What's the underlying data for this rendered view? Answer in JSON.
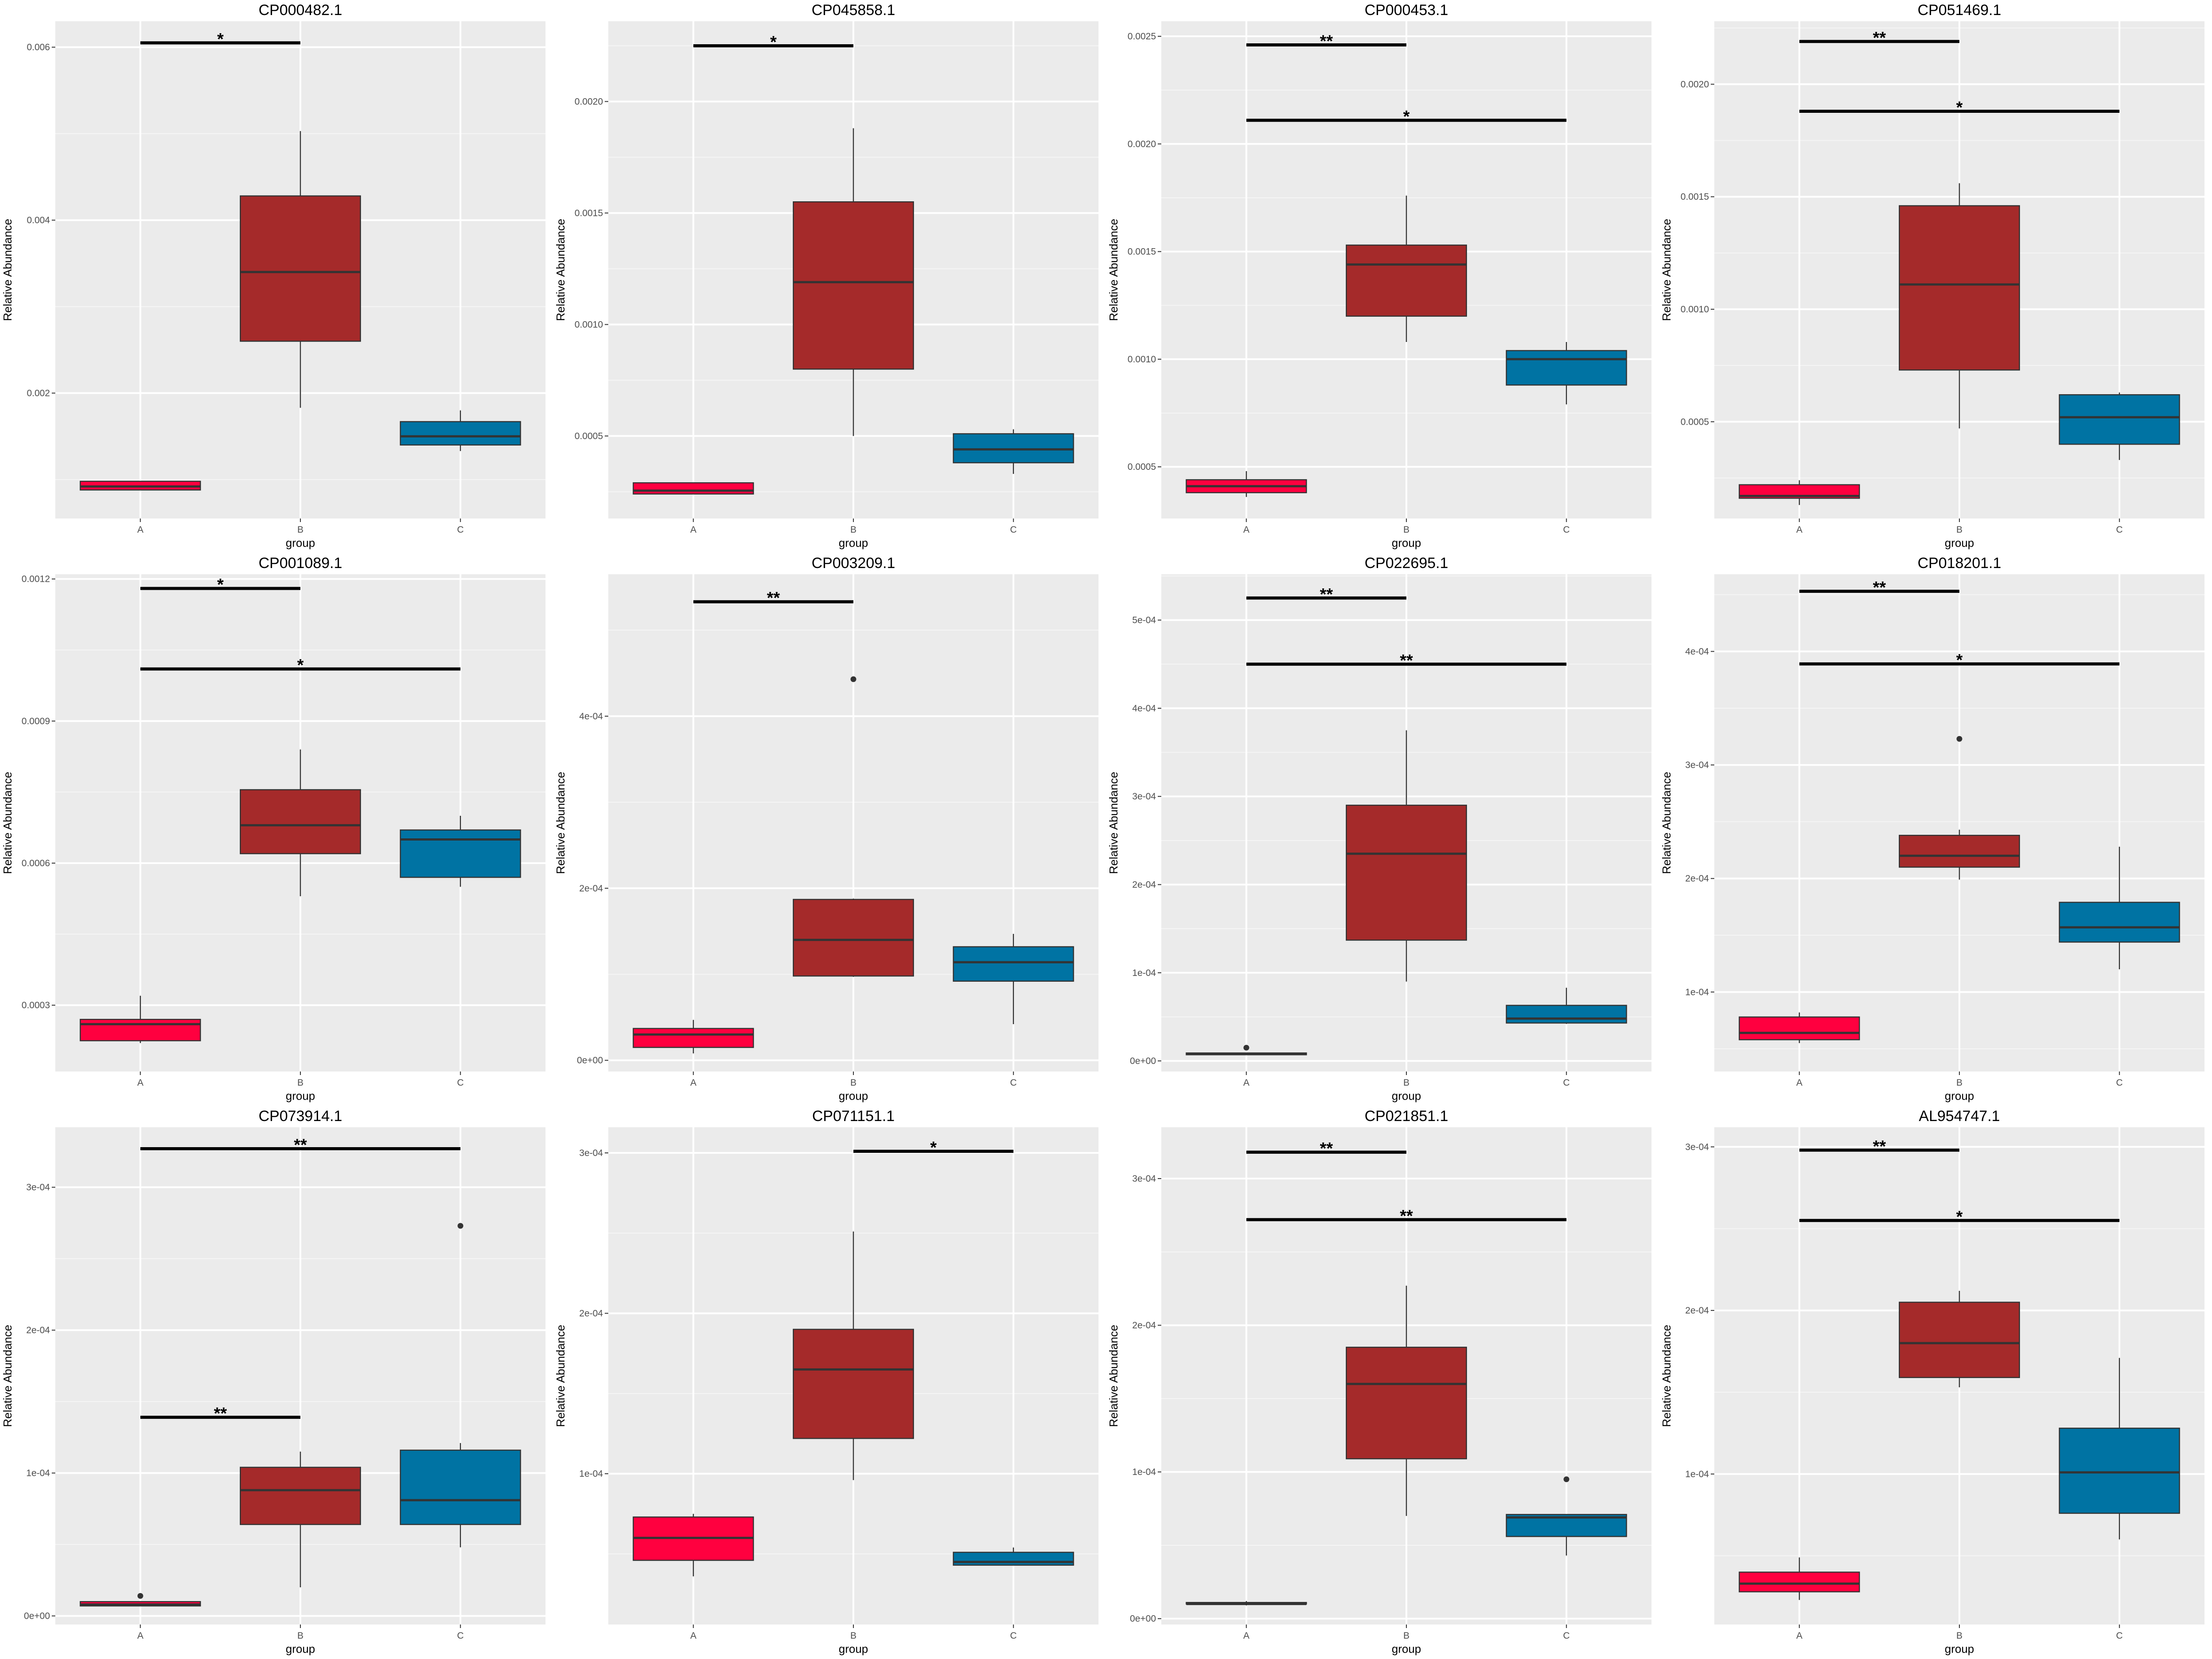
{
  "colors": {
    "A": "#ff003f",
    "B": "#a52a2a",
    "C": "#0073a3",
    "panel_bg": "#ebebeb"
  },
  "chart_data": [
    {
      "type": "box",
      "title": "CP000482.1",
      "xlabel": "group",
      "ylabel": "Relative Abundance",
      "categories": [
        "A",
        "B",
        "C"
      ],
      "ylim": [
        0.00055,
        0.0063
      ],
      "yticks": [
        0.002,
        0.004,
        0.006
      ],
      "yticklabels": [
        "0.002",
        "0.004",
        "0.006"
      ],
      "boxes": [
        {
          "group": "A",
          "min": 0.00088,
          "q1": 0.00088,
          "median": 0.00092,
          "q3": 0.00098,
          "max": 0.00098,
          "outliers": []
        },
        {
          "group": "B",
          "min": 0.00183,
          "q1": 0.0026,
          "median": 0.0034,
          "q3": 0.00428,
          "max": 0.00503,
          "outliers": []
        },
        {
          "group": "C",
          "min": 0.00133,
          "q1": 0.0014,
          "median": 0.0015,
          "q3": 0.00167,
          "max": 0.0018,
          "outliers": []
        }
      ],
      "brackets": [
        {
          "from": "A",
          "to": "B",
          "y": 0.00605,
          "label": "*"
        }
      ]
    },
    {
      "type": "box",
      "title": "CP045858.1",
      "xlabel": "group",
      "ylabel": "Relative Abundance",
      "categories": [
        "A",
        "B",
        "C"
      ],
      "ylim": [
        0.00013,
        0.00236
      ],
      "yticks": [
        0.0005,
        0.001,
        0.0015,
        0.002
      ],
      "yticklabels": [
        "0.0005",
        "0.0010",
        "0.0015",
        "0.0020"
      ],
      "boxes": [
        {
          "group": "A",
          "min": 0.00024,
          "q1": 0.00024,
          "median": 0.000255,
          "q3": 0.00029,
          "max": 0.00029,
          "outliers": []
        },
        {
          "group": "B",
          "min": 0.0005,
          "q1": 0.0008,
          "median": 0.00119,
          "q3": 0.00155,
          "max": 0.00188,
          "outliers": []
        },
        {
          "group": "C",
          "min": 0.00033,
          "q1": 0.00038,
          "median": 0.00044,
          "q3": 0.00051,
          "max": 0.00053,
          "outliers": []
        }
      ],
      "brackets": [
        {
          "from": "A",
          "to": "B",
          "y": 0.00225,
          "label": "*"
        }
      ]
    },
    {
      "type": "box",
      "title": "CP000453.1",
      "xlabel": "group",
      "ylabel": "Relative Abundance",
      "categories": [
        "A",
        "B",
        "C"
      ],
      "ylim": [
        0.00026,
        0.00257
      ],
      "yticks": [
        0.0005,
        0.001,
        0.0015,
        0.002,
        0.0025
      ],
      "yticklabels": [
        "0.0005",
        "0.0010",
        "0.0015",
        "0.0020",
        "0.0025"
      ],
      "boxes": [
        {
          "group": "A",
          "min": 0.00036,
          "q1": 0.00038,
          "median": 0.00041,
          "q3": 0.00044,
          "max": 0.00048,
          "outliers": []
        },
        {
          "group": "B",
          "min": 0.00108,
          "q1": 0.0012,
          "median": 0.00144,
          "q3": 0.00153,
          "max": 0.00176,
          "outliers": []
        },
        {
          "group": "C",
          "min": 0.00079,
          "q1": 0.00088,
          "median": 0.001,
          "q3": 0.00104,
          "max": 0.00108,
          "outliers": []
        }
      ],
      "brackets": [
        {
          "from": "A",
          "to": "B",
          "y": 0.00246,
          "label": "**"
        },
        {
          "from": "A",
          "to": "C",
          "y": 0.00211,
          "label": "*"
        }
      ]
    },
    {
      "type": "box",
      "title": "CP051469.1",
      "xlabel": "group",
      "ylabel": "Relative Abundance",
      "categories": [
        "A",
        "B",
        "C"
      ],
      "ylim": [
        7e-05,
        0.00228
      ],
      "yticks": [
        0.0005,
        0.001,
        0.0015,
        0.002
      ],
      "yticklabels": [
        "0.0005",
        "0.0010",
        "0.0015",
        "0.0020"
      ],
      "boxes": [
        {
          "group": "A",
          "min": 0.00013,
          "q1": 0.00016,
          "median": 0.00017,
          "q3": 0.00022,
          "max": 0.00024,
          "outliers": []
        },
        {
          "group": "B",
          "min": 0.00047,
          "q1": 0.00073,
          "median": 0.00111,
          "q3": 0.00146,
          "max": 0.00156,
          "outliers": []
        },
        {
          "group": "C",
          "min": 0.00033,
          "q1": 0.0004,
          "median": 0.00052,
          "q3": 0.00062,
          "max": 0.00063,
          "outliers": []
        }
      ],
      "brackets": [
        {
          "from": "A",
          "to": "B",
          "y": 0.00219,
          "label": "**"
        },
        {
          "from": "A",
          "to": "C",
          "y": 0.00188,
          "label": "*"
        }
      ]
    },
    {
      "type": "box",
      "title": "CP001089.1",
      "xlabel": "group",
      "ylabel": "Relative Abundance",
      "categories": [
        "A",
        "B",
        "C"
      ],
      "ylim": [
        0.00016,
        0.00121
      ],
      "yticks": [
        0.0003,
        0.0006,
        0.0009,
        0.0012
      ],
      "yticklabels": [
        "0.0003",
        "0.0006",
        "0.0009",
        "0.0012"
      ],
      "boxes": [
        {
          "group": "A",
          "min": 0.00022,
          "q1": 0.000225,
          "median": 0.00026,
          "q3": 0.00027,
          "max": 0.00032,
          "outliers": []
        },
        {
          "group": "B",
          "min": 0.00053,
          "q1": 0.00062,
          "median": 0.00068,
          "q3": 0.000755,
          "max": 0.00084,
          "outliers": []
        },
        {
          "group": "C",
          "min": 0.00055,
          "q1": 0.00057,
          "median": 0.00065,
          "q3": 0.00067,
          "max": 0.0007,
          "outliers": []
        }
      ],
      "brackets": [
        {
          "from": "A",
          "to": "B",
          "y": 0.00118,
          "label": "*"
        },
        {
          "from": "A",
          "to": "C",
          "y": 0.00101,
          "label": "*"
        }
      ]
    },
    {
      "type": "box",
      "title": "CP003209.1",
      "xlabel": "group",
      "ylabel": "Relative Abundance",
      "categories": [
        "A",
        "B",
        "C"
      ],
      "ylim": [
        -1.3e-05,
        0.000565
      ],
      "yticks": [
        0,
        0.0002,
        0.0004
      ],
      "yticklabels": [
        "0e+00",
        "2e-04",
        "4e-04"
      ],
      "boxes": [
        {
          "group": "A",
          "min": 8e-06,
          "q1": 1.5e-05,
          "median": 3e-05,
          "q3": 3.7e-05,
          "max": 4.7e-05,
          "outliers": []
        },
        {
          "group": "B",
          "min": 9.7e-05,
          "q1": 9.8e-05,
          "median": 0.00014,
          "q3": 0.000187,
          "max": 0.000188,
          "outliers": [
            0.000443
          ]
        },
        {
          "group": "C",
          "min": 4.2e-05,
          "q1": 9.2e-05,
          "median": 0.000114,
          "q3": 0.000132,
          "max": 0.000147,
          "outliers": []
        }
      ],
      "brackets": [
        {
          "from": "A",
          "to": "B",
          "y": 0.000533,
          "label": "**"
        }
      ]
    },
    {
      "type": "box",
      "title": "CP022695.1",
      "xlabel": "group",
      "ylabel": "Relative Abundance",
      "categories": [
        "A",
        "B",
        "C"
      ],
      "ylim": [
        -1.2e-05,
        0.000552
      ],
      "yticks": [
        0,
        0.0001,
        0.0002,
        0.0003,
        0.0004,
        0.0005
      ],
      "yticklabels": [
        "0e+00",
        "1e-04",
        "2e-04",
        "3e-04",
        "4e-04",
        "5e-04"
      ],
      "boxes": [
        {
          "group": "A",
          "min": 7e-06,
          "q1": 7e-06,
          "median": 8e-06,
          "q3": 9e-06,
          "max": 9e-06,
          "outliers": [
            1.5e-05
          ]
        },
        {
          "group": "B",
          "min": 9e-05,
          "q1": 0.000137,
          "median": 0.000235,
          "q3": 0.00029,
          "max": 0.000375,
          "outliers": []
        },
        {
          "group": "C",
          "min": 4.2e-05,
          "q1": 4.3e-05,
          "median": 4.8e-05,
          "q3": 6.3e-05,
          "max": 8.3e-05,
          "outliers": []
        }
      ],
      "brackets": [
        {
          "from": "A",
          "to": "B",
          "y": 0.000525,
          "label": "**"
        },
        {
          "from": "A",
          "to": "C",
          "y": 0.00045,
          "label": "**"
        }
      ]
    },
    {
      "type": "box",
      "title": "CP018201.1",
      "xlabel": "group",
      "ylabel": "Relative Abundance",
      "categories": [
        "A",
        "B",
        "C"
      ],
      "ylim": [
        3e-05,
        0.000468
      ],
      "yticks": [
        0.0001,
        0.0002,
        0.0003,
        0.0004
      ],
      "yticklabels": [
        "1e-04",
        "2e-04",
        "3e-04",
        "4e-04"
      ],
      "boxes": [
        {
          "group": "A",
          "min": 5.5e-05,
          "q1": 5.8e-05,
          "median": 6.4e-05,
          "q3": 7.8e-05,
          "max": 8.2e-05,
          "outliers": []
        },
        {
          "group": "B",
          "min": 0.000199,
          "q1": 0.00021,
          "median": 0.00022,
          "q3": 0.000238,
          "max": 0.000243,
          "outliers": [
            0.000323
          ]
        },
        {
          "group": "C",
          "min": 0.00012,
          "q1": 0.000144,
          "median": 0.000157,
          "q3": 0.000179,
          "max": 0.000228,
          "outliers": []
        }
      ],
      "brackets": [
        {
          "from": "A",
          "to": "B",
          "y": 0.000453,
          "label": "**"
        },
        {
          "from": "A",
          "to": "C",
          "y": 0.000389,
          "label": "*"
        }
      ]
    },
    {
      "type": "box",
      "title": "CP073914.1",
      "xlabel": "group",
      "ylabel": "Relative Abundance",
      "categories": [
        "A",
        "B",
        "C"
      ],
      "ylim": [
        -6e-06,
        0.000342
      ],
      "yticks": [
        0,
        0.0001,
        0.0002,
        0.0003
      ],
      "yticklabels": [
        "0e+00",
        "1e-04",
        "2e-04",
        "3e-04"
      ],
      "boxes": [
        {
          "group": "A",
          "min": 7e-06,
          "q1": 7e-06,
          "median": 8e-06,
          "q3": 1e-05,
          "max": 1e-05,
          "outliers": [
            1.4e-05
          ]
        },
        {
          "group": "B",
          "min": 2e-05,
          "q1": 6.4e-05,
          "median": 8.8e-05,
          "q3": 0.000104,
          "max": 0.000115,
          "outliers": []
        },
        {
          "group": "C",
          "min": 4.8e-05,
          "q1": 6.4e-05,
          "median": 8.1e-05,
          "q3": 0.000116,
          "max": 0.000121,
          "outliers": [
            0.000273
          ]
        }
      ],
      "brackets": [
        {
          "from": "A",
          "to": "C",
          "y": 0.000327,
          "label": "**"
        },
        {
          "from": "A",
          "to": "B",
          "y": 0.000139,
          "label": "**"
        }
      ]
    },
    {
      "type": "box",
      "title": "CP071151.1",
      "xlabel": "group",
      "ylabel": "Relative Abundance",
      "categories": [
        "A",
        "B",
        "C"
      ],
      "ylim": [
        6e-06,
        0.000316
      ],
      "yticks": [
        0.0001,
        0.0002,
        0.0003
      ],
      "yticklabels": [
        "1e-04",
        "2e-04",
        "3e-04"
      ],
      "boxes": [
        {
          "group": "A",
          "min": 3.6e-05,
          "q1": 4.6e-05,
          "median": 6e-05,
          "q3": 7.3e-05,
          "max": 7.5e-05,
          "outliers": []
        },
        {
          "group": "B",
          "min": 9.6e-05,
          "q1": 0.000122,
          "median": 0.000165,
          "q3": 0.00019,
          "max": 0.000251,
          "outliers": []
        },
        {
          "group": "C",
          "min": 4.3e-05,
          "q1": 4.3e-05,
          "median": 4.5e-05,
          "q3": 5.1e-05,
          "max": 5.4e-05,
          "outliers": []
        }
      ],
      "brackets": [
        {
          "from": "B",
          "to": "C",
          "y": 0.000301,
          "label": "*"
        }
      ]
    },
    {
      "type": "box",
      "title": "CP021851.1",
      "xlabel": "group",
      "ylabel": "Relative Abundance",
      "categories": [
        "A",
        "B",
        "C"
      ],
      "ylim": [
        -4e-06,
        0.000335
      ],
      "yticks": [
        0,
        0.0001,
        0.0002,
        0.0003
      ],
      "yticklabels": [
        "0e+00",
        "1e-04",
        "2e-04",
        "3e-04"
      ],
      "boxes": [
        {
          "group": "A",
          "min": 9e-06,
          "q1": 1e-05,
          "median": 1e-05,
          "q3": 1.1e-05,
          "max": 1.2e-05,
          "outliers": []
        },
        {
          "group": "B",
          "min": 7e-05,
          "q1": 0.000109,
          "median": 0.00016,
          "q3": 0.000185,
          "max": 0.000227,
          "outliers": []
        },
        {
          "group": "C",
          "min": 4.3e-05,
          "q1": 5.6e-05,
          "median": 6.9e-05,
          "q3": 7.1e-05,
          "max": 7.1e-05,
          "outliers": [
            9.5e-05
          ]
        }
      ],
      "brackets": [
        {
          "from": "A",
          "to": "B",
          "y": 0.000318,
          "label": "**"
        },
        {
          "from": "A",
          "to": "C",
          "y": 0.000272,
          "label": "**"
        }
      ]
    },
    {
      "type": "box",
      "title": "AL954747.1",
      "xlabel": "group",
      "ylabel": "Relative Abundance",
      "categories": [
        "A",
        "B",
        "C"
      ],
      "ylim": [
        8e-06,
        0.000312
      ],
      "yticks": [
        0.0001,
        0.0002,
        0.0003
      ],
      "yticklabels": [
        "1e-04",
        "2e-04",
        "3e-04"
      ],
      "boxes": [
        {
          "group": "A",
          "min": 2.3e-05,
          "q1": 2.8e-05,
          "median": 3.3e-05,
          "q3": 4e-05,
          "max": 4.9e-05,
          "outliers": []
        },
        {
          "group": "B",
          "min": 0.000153,
          "q1": 0.000159,
          "median": 0.00018,
          "q3": 0.000205,
          "max": 0.000212,
          "outliers": []
        },
        {
          "group": "C",
          "min": 6e-05,
          "q1": 7.6e-05,
          "median": 0.000101,
          "q3": 0.000128,
          "max": 0.000171,
          "outliers": []
        }
      ],
      "brackets": [
        {
          "from": "A",
          "to": "B",
          "y": 0.000298,
          "label": "**"
        },
        {
          "from": "A",
          "to": "C",
          "y": 0.000255,
          "label": "*"
        }
      ]
    }
  ]
}
